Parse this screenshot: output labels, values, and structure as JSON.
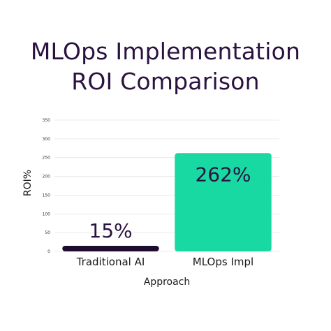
{
  "chart_data": {
    "type": "bar",
    "title": [
      "MLOps Implementation",
      "ROI Comparison"
    ],
    "xlabel": "Approach",
    "ylabel": "ROI%",
    "categories": [
      "Traditional AI",
      "MLOps Impl"
    ],
    "values": [
      15,
      262
    ],
    "data_labels": [
      "15%",
      "262%"
    ],
    "bar_colors": [
      "#1e0b2e",
      "#19d9a3"
    ],
    "ylim": [
      0,
      350
    ],
    "yticks": [
      0,
      50,
      100,
      150,
      200,
      250,
      300,
      350
    ],
    "grid": true,
    "legend": "none"
  }
}
